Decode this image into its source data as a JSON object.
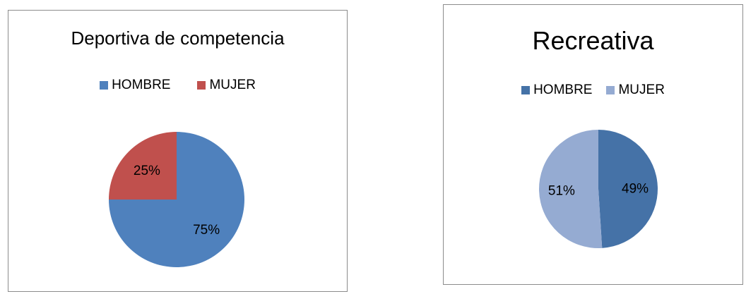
{
  "chart_data": [
    {
      "type": "pie",
      "title": "Deportiva de competencia",
      "categories": [
        "HOMBRE",
        "MUJER"
      ],
      "values": [
        75,
        25
      ],
      "labels": [
        "75%",
        "25%"
      ],
      "colors": [
        "#4f81bd",
        "#c0504d"
      ],
      "legend": "top"
    },
    {
      "type": "pie",
      "title": "Recreativa",
      "categories": [
        "HOMBRE",
        "MUJER"
      ],
      "values": [
        49,
        51
      ],
      "labels": [
        "49%",
        "51%"
      ],
      "colors": [
        "#4572a7",
        "#95abd2"
      ],
      "legend": "top"
    }
  ]
}
